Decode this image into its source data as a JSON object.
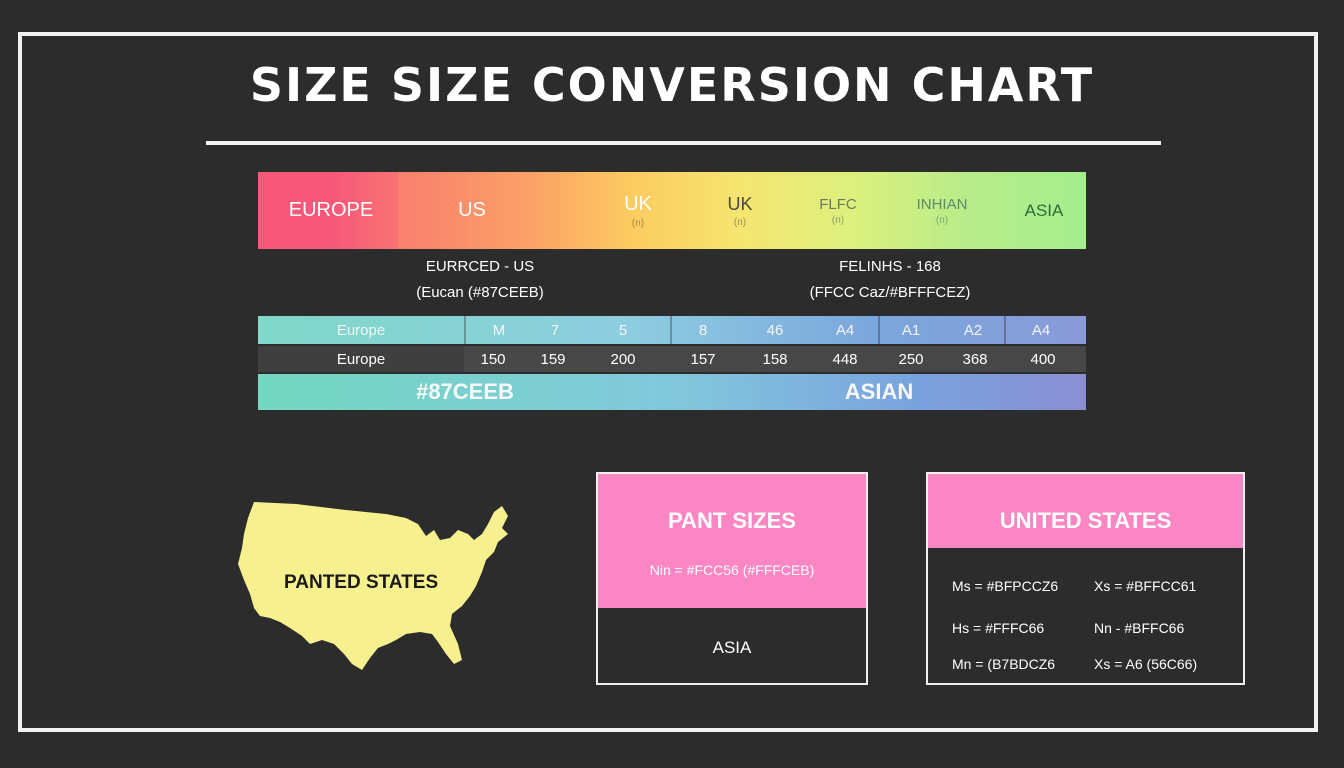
{
  "title": "SIZE SIZE CONVERSION CHART",
  "band": {
    "labels": [
      {
        "main": "EUROPE",
        "sub": ""
      },
      {
        "main": "US",
        "sub": ""
      },
      {
        "main": "UK",
        "sub": "(n)"
      },
      {
        "main": "UK",
        "sub": "(n)"
      },
      {
        "main": "FLFC",
        "sub": "(n)"
      },
      {
        "main": "INHIAN",
        "sub": "(n)"
      },
      {
        "main": "ASIA",
        "sub": ""
      }
    ]
  },
  "captions": {
    "left": {
      "line1": "EURRCED - US",
      "line2": "(Eucan (#87CEEB)"
    },
    "right": {
      "line1": "FELINHS - 168",
      "line2": "(FFCC Caz/#BFFFCEZ)"
    }
  },
  "table": {
    "row1": {
      "label": "Europe",
      "cells": [
        "M",
        "7",
        "5",
        "8",
        "46",
        "A4",
        "A1",
        "A2",
        "A4"
      ]
    },
    "row2": {
      "label": "Europe",
      "cells": [
        "150",
        "159",
        "200",
        "157",
        "158",
        "448",
        "250",
        "368",
        "400"
      ]
    },
    "row3": {
      "left": "#87CEEB",
      "right": "ASIAN"
    }
  },
  "map": {
    "label": "PANTED STATES",
    "icon": "usa-map-icon",
    "color": "#f7f08f"
  },
  "card_pant": {
    "title": "PANT SIZES",
    "line": "Nin = #FCC56 (#FFFCEB)",
    "footer": "ASIA"
  },
  "card_us": {
    "title": "UNITED STATES",
    "rows": [
      {
        "a": "Ms = #BFPCCZ6",
        "b": "Xs = #BFFCC61"
      },
      {
        "a": "Hs = #FFFC66",
        "b": "Nn - #BFFC66"
      },
      {
        "a": "Mn = (B7BDCZ6",
        "b": "Xs = A6 (56C66)"
      }
    ]
  },
  "colors": {
    "background": "#2c2c2c",
    "pink": "#fa86c4",
    "map_yellow": "#f7f08f",
    "band_start": "#f7577a",
    "band_end": "#a4ee8d"
  }
}
